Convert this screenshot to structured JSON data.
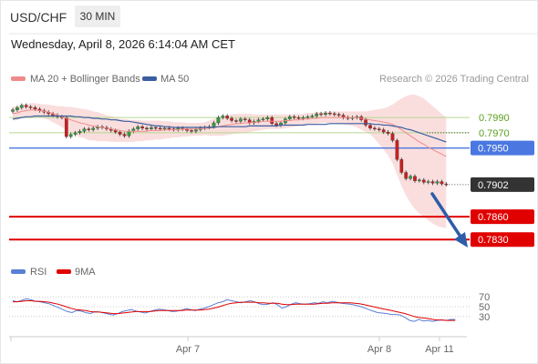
{
  "header": {
    "symbol": "USD/CHF",
    "timeframe": "30 MIN",
    "date": "Wednesday, April 8, 2026 6:14:04 AM CET"
  },
  "legend": {
    "ma20_label": "MA 20 + Bollinger Bands",
    "ma50_label": "MA 50",
    "credit": "Research © 2026 Trading Central"
  },
  "rsi_legend": {
    "rsi_label": "RSI",
    "ma9_label": "9MA"
  },
  "colors": {
    "bollinger": "#f08a8a",
    "ma50": "#3a5fa0",
    "bull": "#2e9e3e",
    "bear": "#c82020",
    "support": "#e00000",
    "pivot": "#4a78e0",
    "rsi": "#5a7fd6",
    "rsi_ma": "#e00000",
    "arrow": "#2e5ca8"
  },
  "chart_data": [
    {
      "type": "candlestick",
      "ylim": [
        0.781,
        0.802
      ],
      "x_ticks": [
        "Apr 7",
        "Apr 8",
        "Apr 11"
      ],
      "last_price": 0.7902,
      "price_levels": [
        {
          "label": "0.7990",
          "value": 0.799,
          "kind": "resistance"
        },
        {
          "label": "0.7970",
          "value": 0.797,
          "kind": "resistance"
        },
        {
          "label": "0.7950",
          "value": 0.795,
          "kind": "pivot"
        },
        {
          "label": "0.7902",
          "value": 0.7902,
          "kind": "last"
        },
        {
          "label": "0.7860",
          "value": 0.786,
          "kind": "support"
        },
        {
          "label": "0.7830",
          "value": 0.783,
          "kind": "support"
        }
      ],
      "closes": [
        0.8,
        0.8003,
        0.8006,
        0.8004,
        0.8003,
        0.8001,
        0.7999,
        0.7997,
        0.7995,
        0.7993,
        0.7991,
        0.799,
        0.7965,
        0.7968,
        0.797,
        0.7972,
        0.7975,
        0.7974,
        0.7976,
        0.7978,
        0.7977,
        0.7975,
        0.7973,
        0.7971,
        0.7968,
        0.7966,
        0.7972,
        0.7975,
        0.7978,
        0.7976,
        0.7975,
        0.7977,
        0.7976,
        0.7975,
        0.7976,
        0.7975,
        0.7974,
        0.7976,
        0.7975,
        0.7973,
        0.7972,
        0.7974,
        0.7976,
        0.7977,
        0.7978,
        0.7983,
        0.799,
        0.7992,
        0.7989,
        0.7986,
        0.7985,
        0.7988,
        0.7987,
        0.7983,
        0.7985,
        0.7987,
        0.7988,
        0.799,
        0.7982,
        0.798,
        0.7983,
        0.7988,
        0.7991,
        0.799,
        0.7989,
        0.799,
        0.7991,
        0.7992,
        0.7995,
        0.7994,
        0.7996,
        0.7995,
        0.7994,
        0.7993,
        0.799,
        0.7989,
        0.799,
        0.7991,
        0.7987,
        0.798,
        0.7976,
        0.7975,
        0.7974,
        0.7971,
        0.7969,
        0.796,
        0.7935,
        0.7918,
        0.791,
        0.7913,
        0.7907,
        0.7908,
        0.7905,
        0.7906,
        0.7904,
        0.7906,
        0.7903,
        0.7902
      ],
      "ma20": [
        0.7995,
        0.7996,
        0.7998,
        0.7999,
        0.8,
        0.8,
        0.7999,
        0.7998,
        0.7997,
        0.7995,
        0.7993,
        0.7991,
        0.7989,
        0.7987,
        0.7985,
        0.7983,
        0.7982,
        0.798,
        0.7979,
        0.7978,
        0.7977,
        0.7976,
        0.7975,
        0.7974,
        0.7973,
        0.7972,
        0.7972,
        0.7972,
        0.7972,
        0.7972,
        0.7972,
        0.7973,
        0.7973,
        0.7973,
        0.7974,
        0.7974,
        0.7974,
        0.7974,
        0.7975,
        0.7975,
        0.7975,
        0.7975,
        0.7975,
        0.7976,
        0.7976,
        0.7977,
        0.7978,
        0.7979,
        0.798,
        0.7981,
        0.7982,
        0.7982,
        0.7983,
        0.7983,
        0.7984,
        0.7984,
        0.7985,
        0.7985,
        0.7985,
        0.7985,
        0.7985,
        0.7986,
        0.7986,
        0.7987,
        0.7987,
        0.7988,
        0.7988,
        0.7989,
        0.7989,
        0.799,
        0.799,
        0.799,
        0.799,
        0.799,
        0.799,
        0.799,
        0.799,
        0.799,
        0.7989,
        0.7988,
        0.7987,
        0.7986,
        0.7985,
        0.7984,
        0.7983,
        0.7981,
        0.7978,
        0.7974,
        0.797,
        0.7966,
        0.7962,
        0.7958,
        0.7955,
        0.7951,
        0.7948,
        0.7945,
        0.7942,
        0.7939
      ],
      "ma50": [
        0.7988,
        0.7989,
        0.799,
        0.7991,
        0.7991,
        0.7992,
        0.7992,
        0.7992,
        0.7992,
        0.7992,
        0.7992,
        0.7992,
        0.7992,
        0.7992,
        0.7991,
        0.7991,
        0.799,
        0.799,
        0.7989,
        0.7989,
        0.7988,
        0.7988,
        0.7987,
        0.7987,
        0.7986,
        0.7985,
        0.7985,
        0.7984,
        0.7983,
        0.7982,
        0.7981,
        0.798,
        0.7979,
        0.7979,
        0.7978,
        0.7978,
        0.7977,
        0.7977,
        0.7977,
        0.7977,
        0.7977,
        0.7977,
        0.7977,
        0.7977,
        0.7977,
        0.7977,
        0.7978,
        0.7978,
        0.7978,
        0.7978,
        0.7978,
        0.7978,
        0.7978,
        0.7979,
        0.7979,
        0.7979,
        0.7979,
        0.7979,
        0.7979,
        0.7979,
        0.798,
        0.798,
        0.798,
        0.798,
        0.798,
        0.798,
        0.7981,
        0.7981,
        0.7981,
        0.7981,
        0.7981,
        0.7982,
        0.7982,
        0.7982,
        0.7982,
        0.7982,
        0.7982,
        0.7982,
        0.7982,
        0.7982,
        0.7982,
        0.7981,
        0.7981,
        0.798,
        0.798,
        0.7979,
        0.7978,
        0.7977,
        0.7975,
        0.7974,
        0.7972,
        0.797,
        0.7968,
        0.7966,
        0.7964,
        0.7962,
        0.796,
        0.7958
      ],
      "bb_upper": [
        0.8004,
        0.8005,
        0.8007,
        0.8008,
        0.8009,
        0.8009,
        0.8008,
        0.8007,
        0.8007,
        0.8006,
        0.8005,
        0.8005,
        0.8004,
        0.8004,
        0.8003,
        0.8002,
        0.8001,
        0.8,
        0.7998,
        0.7997,
        0.7995,
        0.7993,
        0.7992,
        0.799,
        0.7988,
        0.7988,
        0.7987,
        0.7987,
        0.7987,
        0.7986,
        0.7986,
        0.7986,
        0.7986,
        0.7986,
        0.7985,
        0.7985,
        0.7984,
        0.7984,
        0.7984,
        0.7983,
        0.7983,
        0.7983,
        0.7983,
        0.7984,
        0.7986,
        0.7988,
        0.799,
        0.7992,
        0.7993,
        0.7994,
        0.7995,
        0.7995,
        0.7995,
        0.7995,
        0.7994,
        0.7994,
        0.7994,
        0.7994,
        0.7994,
        0.7994,
        0.7994,
        0.7994,
        0.7994,
        0.7995,
        0.7995,
        0.7995,
        0.7996,
        0.7996,
        0.7997,
        0.7997,
        0.7997,
        0.7998,
        0.7998,
        0.7998,
        0.7998,
        0.7998,
        0.7998,
        0.7998,
        0.7998,
        0.7998,
        0.7999,
        0.8,
        0.8001,
        0.8002,
        0.8004,
        0.8007,
        0.8011,
        0.8015,
        0.8018,
        0.802,
        0.802,
        0.8018,
        0.8015,
        0.801,
        0.8005,
        0.8,
        0.7995,
        0.799
      ],
      "bb_lower": [
        0.7986,
        0.7987,
        0.7989,
        0.799,
        0.7991,
        0.7991,
        0.799,
        0.7989,
        0.7987,
        0.7984,
        0.7981,
        0.7977,
        0.7974,
        0.797,
        0.7967,
        0.7964,
        0.7963,
        0.796,
        0.796,
        0.7959,
        0.7959,
        0.7959,
        0.7958,
        0.7958,
        0.7958,
        0.7958,
        0.7958,
        0.7958,
        0.7959,
        0.7959,
        0.796,
        0.796,
        0.7961,
        0.7961,
        0.7962,
        0.7963,
        0.7964,
        0.7964,
        0.7965,
        0.7965,
        0.7966,
        0.7966,
        0.7966,
        0.7967,
        0.7966,
        0.7966,
        0.7966,
        0.7966,
        0.7967,
        0.7968,
        0.7969,
        0.7969,
        0.797,
        0.7971,
        0.7972,
        0.7973,
        0.7974,
        0.7975,
        0.7975,
        0.7975,
        0.7975,
        0.7976,
        0.7977,
        0.7978,
        0.7979,
        0.798,
        0.7981,
        0.7982,
        0.7982,
        0.7983,
        0.7983,
        0.7983,
        0.7982,
        0.7982,
        0.7981,
        0.798,
        0.7979,
        0.7977,
        0.7974,
        0.7971,
        0.7968,
        0.7962,
        0.7955,
        0.7948,
        0.794,
        0.793,
        0.7915,
        0.79,
        0.7888,
        0.7878,
        0.787,
        0.7864,
        0.786,
        0.7855,
        0.7851,
        0.7848,
        0.7846,
        0.7845
      ]
    },
    {
      "type": "line",
      "ylim": [
        0,
        100
      ],
      "y_ticks": [
        70,
        50,
        30
      ],
      "rsi": [
        62,
        60,
        63,
        66,
        64,
        61,
        60,
        58,
        56,
        52,
        48,
        44,
        40,
        38,
        42,
        41,
        38,
        36,
        40,
        39,
        37,
        35,
        33,
        36,
        40,
        42,
        44,
        41,
        39,
        37,
        40,
        43,
        45,
        44,
        42,
        40,
        41,
        43,
        46,
        44,
        42,
        45,
        47,
        50,
        54,
        58,
        60,
        64,
        62,
        60,
        58,
        60,
        62,
        60,
        56,
        54,
        55,
        58,
        54,
        47,
        50,
        55,
        58,
        56,
        55,
        56,
        58,
        57,
        60,
        58,
        61,
        59,
        57,
        56,
        55,
        53,
        51,
        48,
        44,
        41,
        38,
        37,
        36,
        34,
        34,
        33,
        28,
        22,
        20,
        24,
        21,
        22,
        20,
        22,
        23,
        22,
        24,
        24
      ],
      "rsi_ma": [
        60,
        60,
        61,
        62,
        62,
        61,
        61,
        60,
        59,
        57,
        55,
        52,
        49,
        46,
        44,
        43,
        42,
        40,
        39,
        39,
        38,
        37,
        36,
        36,
        37,
        38,
        39,
        40,
        40,
        40,
        40,
        41,
        42,
        42,
        42,
        42,
        42,
        42,
        43,
        43,
        43,
        43,
        44,
        45,
        47,
        49,
        52,
        55,
        57,
        58,
        59,
        59,
        59,
        59,
        58,
        58,
        57,
        57,
        57,
        55,
        54,
        54,
        55,
        55,
        55,
        55,
        55,
        56,
        57,
        57,
        58,
        58,
        58,
        58,
        58,
        57,
        56,
        54,
        52,
        50,
        48,
        46,
        44,
        42,
        40,
        38,
        36,
        33,
        30,
        28,
        27,
        26,
        24,
        23,
        23,
        22,
        22,
        22
      ]
    }
  ]
}
